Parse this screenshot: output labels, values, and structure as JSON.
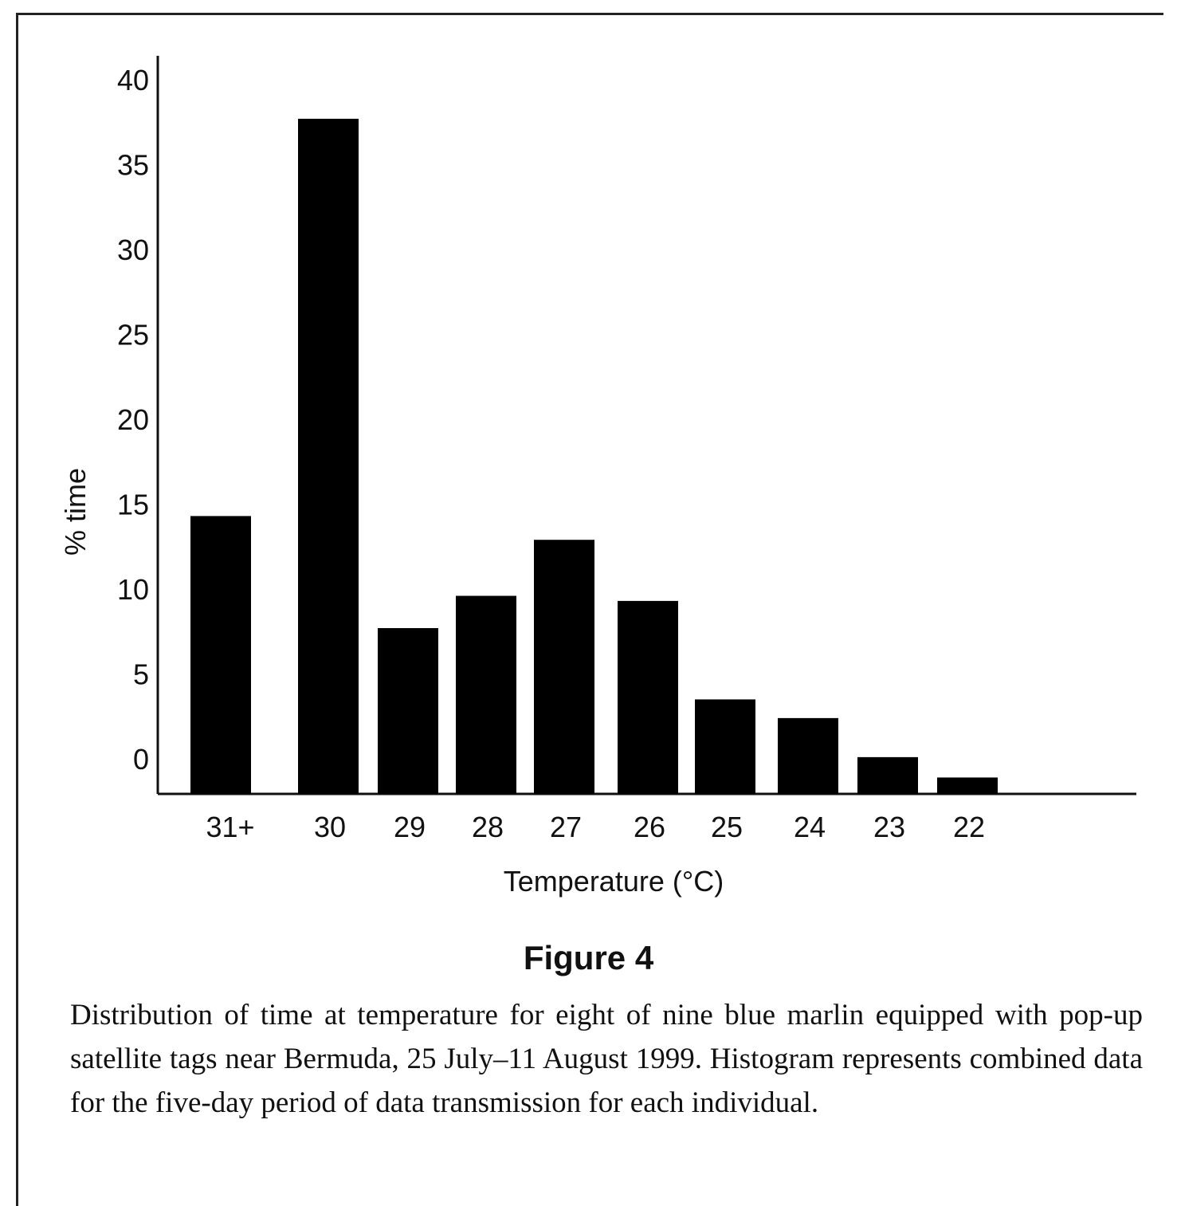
{
  "chart_data": {
    "type": "bar",
    "categories": [
      "31+",
      "30",
      "29",
      "28",
      "27",
      "26",
      "25",
      "24",
      "23",
      "22"
    ],
    "values": [
      14.3,
      37.7,
      7.7,
      9.6,
      12.9,
      9.3,
      3.5,
      2.4,
      0.1,
      -1.1
    ],
    "xlabel": "Temperature (°C)",
    "ylabel": "% time",
    "yticks": [
      "0",
      "5",
      "10",
      "15",
      "20",
      "25",
      "30",
      "35",
      "40"
    ],
    "ylim": [
      -2,
      41.5
    ],
    "grid": false,
    "bar_color": "#000000"
  },
  "figure": {
    "label": "Figure 4",
    "caption": "Distribution of time at temperature for eight of nine blue marlin equipped with pop-up satellite tags near Bermuda, 25 July–11 August 1999. Histogram represents combined data for the five-day period of data transmission for each individual."
  }
}
